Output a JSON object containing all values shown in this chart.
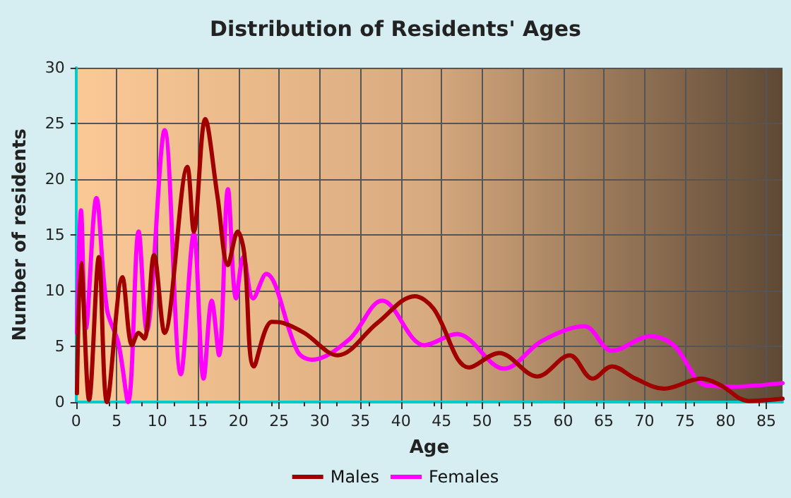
{
  "chart_data": {
    "type": "line",
    "title": "Distribution of Residents' Ages",
    "xlabel": "Age",
    "ylabel": "Number of residents",
    "xlim": [
      0,
      87
    ],
    "xticks": [
      0,
      5,
      10,
      15,
      20,
      25,
      30,
      35,
      40,
      45,
      50,
      55,
      60,
      65,
      70,
      75,
      80,
      85
    ],
    "ylim": [
      0,
      30
    ],
    "yticks": [
      0,
      5,
      10,
      15,
      20,
      25,
      30
    ],
    "grid": true,
    "legend": "bottom",
    "marker": "none",
    "line_style": "solid",
    "series": [
      {
        "name": "Males",
        "color": "#a00000",
        "x": [
          0.1,
          0.6,
          1.6,
          2.8,
          3.8,
          5.7,
          6.9,
          7.7,
          8.4,
          9.6,
          10.9,
          13.7,
          14.5,
          15.9,
          17.4,
          18.7,
          19.9,
          20.7,
          21.9,
          24.1,
          25.5,
          28.1,
          32.2,
          37.1,
          41.7,
          44,
          48.4,
          52.1,
          56.8,
          60.8,
          63.6,
          66,
          68.9,
          72.4,
          77,
          79.4,
          82.8,
          87
        ],
        "values": [
          0.8,
          12.5,
          0.2,
          13,
          0,
          11.2,
          5.1,
          6.2,
          5.7,
          13.2,
          6.2,
          21.1,
          15.3,
          25.4,
          18.5,
          12.3,
          15.3,
          13.4,
          3.2,
          7.2,
          7.1,
          6.2,
          4.2,
          7.1,
          9.5,
          8.4,
          3.1,
          4.4,
          2.3,
          4.2,
          2.1,
          3.2,
          2.1,
          1.2,
          2.1,
          1.5,
          0.1,
          0.3
        ]
      },
      {
        "name": "Females",
        "color": "#ff00ff",
        "x": [
          0.1,
          0.6,
          1.2,
          2.5,
          3.8,
          5.2,
          6.4,
          7.7,
          8.7,
          10.9,
          12.9,
          14.5,
          15.7,
          16.7,
          17.6,
          18.7,
          19.7,
          20.6,
          21.8,
          23.4,
          27.3,
          29,
          33.6,
          37.7,
          42.9,
          46.9,
          52.7,
          57.4,
          62.6,
          66,
          70.7,
          73.6,
          77.6,
          81.1,
          87
        ],
        "values": [
          6.2,
          17.2,
          6.6,
          18.3,
          8.3,
          5.3,
          0,
          15.3,
          6.4,
          24.4,
          2.5,
          15.1,
          2.1,
          9.1,
          4.2,
          19.1,
          9.3,
          13,
          9.3,
          11.5,
          4.5,
          3.8,
          5.6,
          9.1,
          5.1,
          6.1,
          3,
          5.5,
          6.8,
          4.6,
          5.9,
          5.1,
          1.5,
          1.4,
          1.7
        ]
      }
    ]
  }
}
